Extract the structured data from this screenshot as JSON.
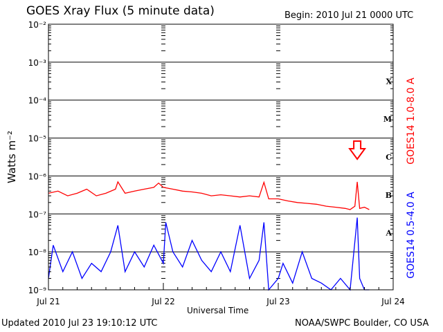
{
  "header": {
    "title": "GOES Xray Flux (5 minute data)",
    "begin": "Begin:  2010 Jul 21 0000 UTC"
  },
  "footer": {
    "updated": "Updated 2010 Jul 23 19:10:12 UTC",
    "credit": "NOAA/SWPC Boulder, CO USA"
  },
  "colors": {
    "long": "#ff0000",
    "short": "#0000ff",
    "axis": "#000000"
  },
  "chart_data": {
    "type": "line",
    "title": "GOES Xray Flux (5 minute data)",
    "xlabel": "Universal Time",
    "ylabel": "Watts m⁻²",
    "y_scale": "log",
    "ylim": [
      1e-09,
      0.01
    ],
    "xlim": [
      "2010-07-21 00:00",
      "2010-07-24 00:00"
    ],
    "x_ticks": [
      "Jul 21",
      "Jul 22",
      "Jul 23",
      "Jul 24"
    ],
    "y_ticks": [
      "10⁻⁹",
      "10⁻⁸",
      "10⁻⁷",
      "10⁻⁶",
      "10⁻⁵",
      "10⁻⁴",
      "10⁻³",
      "10⁻²"
    ],
    "flare_classes": [
      {
        "label": "X",
        "level": 0.0001
      },
      {
        "label": "M",
        "level": 1e-05
      },
      {
        "label": "C",
        "level": 1e-06
      },
      {
        "label": "B",
        "level": 1e-07
      },
      {
        "label": "A",
        "level": 1e-08
      }
    ],
    "grid": true,
    "annotations": [
      {
        "type": "arrow-down",
        "x": "2010-07-23 16:30",
        "color": "#ff0000"
      }
    ],
    "series": [
      {
        "name": "GOES14 1.0-8.0 A",
        "color": "#ff0000",
        "x": [
          "2010-07-21 00:00",
          "2010-07-21 02:00",
          "2010-07-21 04:00",
          "2010-07-21 06:00",
          "2010-07-21 08:00",
          "2010-07-21 10:00",
          "2010-07-21 12:00",
          "2010-07-21 14:00",
          "2010-07-21 14:30",
          "2010-07-21 16:00",
          "2010-07-21 18:00",
          "2010-07-21 20:00",
          "2010-07-21 22:00",
          "2010-07-21 23:00",
          "2010-07-22 00:00",
          "2010-07-22 02:00",
          "2010-07-22 04:00",
          "2010-07-22 06:00",
          "2010-07-22 08:00",
          "2010-07-22 10:00",
          "2010-07-22 12:00",
          "2010-07-22 14:00",
          "2010-07-22 16:00",
          "2010-07-22 18:00",
          "2010-07-22 20:00",
          "2010-07-22 21:00",
          "2010-07-22 22:00",
          "2010-07-23 00:00",
          "2010-07-23 02:00",
          "2010-07-23 04:00",
          "2010-07-23 06:00",
          "2010-07-23 08:00",
          "2010-07-23 10:00",
          "2010-07-23 12:00",
          "2010-07-23 14:00",
          "2010-07-23 15:00",
          "2010-07-23 16:00",
          "2010-07-23 16:30",
          "2010-07-23 17:00",
          "2010-07-23 18:00",
          "2010-07-23 19:00"
        ],
        "y": [
          3.5e-07,
          4e-07,
          3e-07,
          3.5e-07,
          4.5e-07,
          3e-07,
          3.5e-07,
          4.5e-07,
          7e-07,
          3.5e-07,
          4e-07,
          4.5e-07,
          5e-07,
          6.5e-07,
          5e-07,
          4.5e-07,
          4e-07,
          3.8e-07,
          3.5e-07,
          3e-07,
          3.2e-07,
          3e-07,
          2.8e-07,
          3e-07,
          2.8e-07,
          6.8e-07,
          2.5e-07,
          2.5e-07,
          2.2e-07,
          2e-07,
          1.9e-07,
          1.8e-07,
          1.6e-07,
          1.5e-07,
          1.4e-07,
          1.3e-07,
          1.6e-07,
          7e-07,
          1.4e-07,
          1.5e-07,
          1.3e-07
        ]
      },
      {
        "name": "GOES14 0.5-4.0 A",
        "color": "#0000ff",
        "x": [
          "2010-07-21 00:00",
          "2010-07-21 01:00",
          "2010-07-21 03:00",
          "2010-07-21 05:00",
          "2010-07-21 07:00",
          "2010-07-21 09:00",
          "2010-07-21 11:00",
          "2010-07-21 13:00",
          "2010-07-21 14:30",
          "2010-07-21 16:00",
          "2010-07-21 18:00",
          "2010-07-21 20:00",
          "2010-07-21 22:00",
          "2010-07-22 00:00",
          "2010-07-22 00:30",
          "2010-07-22 02:00",
          "2010-07-22 04:00",
          "2010-07-22 06:00",
          "2010-07-22 08:00",
          "2010-07-22 10:00",
          "2010-07-22 12:00",
          "2010-07-22 14:00",
          "2010-07-22 16:00",
          "2010-07-22 18:00",
          "2010-07-22 20:00",
          "2010-07-22 21:00",
          "2010-07-22 22:00",
          "2010-07-23 00:00",
          "2010-07-23 01:00",
          "2010-07-23 03:00",
          "2010-07-23 05:00",
          "2010-07-23 07:00",
          "2010-07-23 09:00",
          "2010-07-23 11:00",
          "2010-07-23 13:00",
          "2010-07-23 15:00",
          "2010-07-23 16:30",
          "2010-07-23 17:00",
          "2010-07-23 18:00",
          "2010-07-23 19:00"
        ],
        "y": [
          2e-09,
          1.5e-08,
          3e-09,
          1e-08,
          2e-09,
          5e-09,
          3e-09,
          1e-08,
          5e-08,
          3e-09,
          1e-08,
          4e-09,
          1.5e-08,
          5e-09,
          6e-08,
          1e-08,
          4e-09,
          2e-08,
          6e-09,
          3e-09,
          1e-08,
          3e-09,
          5e-08,
          2e-09,
          6e-09,
          6e-08,
          1e-09,
          2e-09,
          5e-09,
          1.5e-09,
          1e-08,
          2e-09,
          1.5e-09,
          1e-09,
          2e-09,
          1e-09,
          8e-08,
          2e-09,
          1e-09,
          1e-09
        ]
      }
    ]
  }
}
